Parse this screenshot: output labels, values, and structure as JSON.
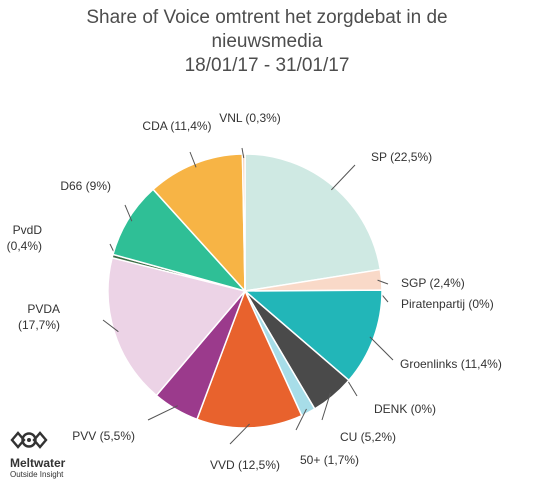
{
  "title": {
    "line1": "Share of Voice omtrent het zorgdebat in de",
    "line2": "nieuwsmedia",
    "line3": "18/01/17 - 31/01/17"
  },
  "brand": {
    "name": "Meltwater",
    "tagline": "Outside Insight",
    "icon": "meltwater-logo-icon"
  },
  "chart_data": {
    "type": "pie",
    "start": "12 o'clock",
    "direction": "clockwise",
    "slices": [
      {
        "label": "SP (22,5%)",
        "value": 22.5,
        "color": "#cfe9e3"
      },
      {
        "label": "SGP (2,4%)",
        "value": 2.4,
        "color": "#f9d9c8"
      },
      {
        "label": "Piratenpartij (0%)",
        "value": 0,
        "color": "#cccccc"
      },
      {
        "label": "Groenlinks (11,4%)",
        "value": 11.4,
        "color": "#22b6b8"
      },
      {
        "label": "DENK (0%)",
        "value": 0,
        "color": "#555555"
      },
      {
        "label": "CU (5,2%)",
        "value": 5.2,
        "color": "#4a4a4a"
      },
      {
        "label": "50+ (1,7%)",
        "value": 1.7,
        "color": "#a7dde8"
      },
      {
        "label": "VVD (12,5%)",
        "value": 12.5,
        "color": "#e8622d"
      },
      {
        "label": "PVV (5,5%)",
        "value": 5.5,
        "color": "#9b3a8c"
      },
      {
        "label": "PVDA\n(17,7%)",
        "value": 17.7,
        "color": "#ecd3e6"
      },
      {
        "label": "PvdD\n(0,4%)",
        "value": 0.4,
        "color": "#3c6e46"
      },
      {
        "label": "D66 (9%)",
        "value": 9,
        "color": "#2fbf96"
      },
      {
        "label": "CDA (11,4%)",
        "value": 11.4,
        "color": "#f7b445"
      },
      {
        "label": "VNL (0,3%)",
        "value": 0.3,
        "color": "#f6c7a5"
      }
    ]
  }
}
